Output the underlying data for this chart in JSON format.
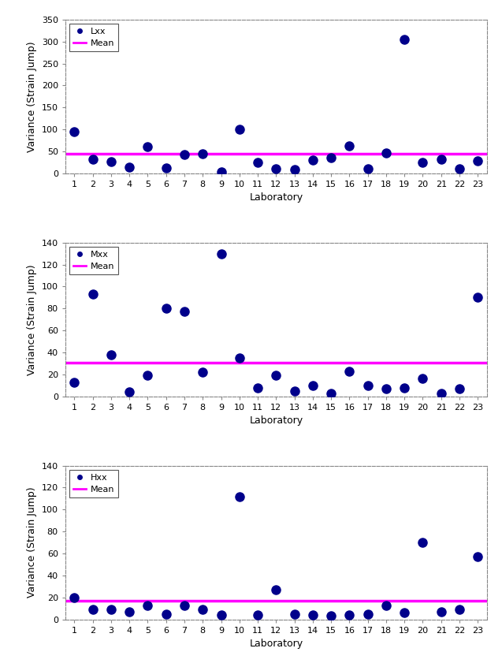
{
  "labs": [
    1,
    2,
    3,
    4,
    5,
    6,
    7,
    8,
    9,
    10,
    11,
    12,
    13,
    14,
    15,
    16,
    17,
    18,
    19,
    20,
    21,
    22,
    23
  ],
  "lxx_values": [
    95,
    32,
    27,
    15,
    60,
    13,
    43,
    44,
    3,
    100,
    25,
    10,
    8,
    30,
    35,
    62,
    10,
    47,
    305,
    25,
    33,
    10,
    28
  ],
  "lxx_mean": 45,
  "mxx_values": [
    13,
    93,
    38,
    4,
    19,
    80,
    77,
    22,
    130,
    35,
    8,
    19,
    5,
    10,
    3,
    23,
    10,
    7,
    8,
    16,
    3,
    7,
    90
  ],
  "mxx_mean": 31,
  "hxx_values": [
    20,
    9,
    9,
    7,
    13,
    5,
    13,
    9,
    4,
    112,
    4,
    27,
    5,
    4,
    3,
    4,
    5,
    13,
    6,
    70,
    7,
    9,
    57
  ],
  "hxx_mean": 17,
  "dot_color": "#00008B",
  "mean_color": "#FF00FF",
  "bg_color": "#FFFFFF",
  "plot_bg_color": "#FFFFFF",
  "legend_dot_label_lxx": "Lxx",
  "legend_dot_label_mxx": "Mxx",
  "legend_dot_label_hxx": "Hxx",
  "legend_mean_label": "Mean",
  "xlabel": "Laboratory",
  "ylabel": "Variance (Strain Jump)",
  "lxx_ylim": [
    0,
    350
  ],
  "lxx_yticks": [
    0,
    50,
    100,
    150,
    200,
    250,
    300,
    350
  ],
  "mxx_ylim": [
    0,
    140
  ],
  "mxx_yticks": [
    0,
    20,
    40,
    60,
    80,
    100,
    120,
    140
  ],
  "hxx_ylim": [
    0,
    140
  ],
  "hxx_yticks": [
    0,
    20,
    40,
    60,
    80,
    100,
    120,
    140
  ],
  "xticks": [
    1,
    2,
    3,
    4,
    5,
    6,
    7,
    8,
    9,
    10,
    11,
    12,
    13,
    14,
    15,
    16,
    17,
    18,
    19,
    20,
    21,
    22,
    23
  ],
  "marker_size": 8,
  "mean_linewidth": 2.5,
  "fontsize_labels": 9,
  "fontsize_ticks": 8,
  "fontsize_legend": 8
}
